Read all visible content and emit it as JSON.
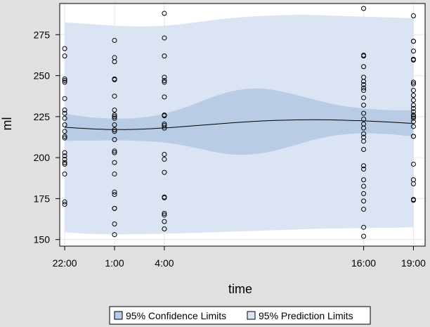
{
  "chart_data": {
    "type": "scatter",
    "xlabel": "time",
    "ylabel": "ml",
    "x_ticks": [
      {
        "value": 0,
        "label": "22:00"
      },
      {
        "value": 3,
        "label": "1:00"
      },
      {
        "value": 6,
        "label": "4:00"
      },
      {
        "value": 18,
        "label": "16:00"
      },
      {
        "value": 21,
        "label": "19:00"
      }
    ],
    "xlim": [
      -0.3,
      21.7
    ],
    "y_ticks": [
      150,
      175,
      200,
      225,
      250,
      275
    ],
    "ylim": [
      146,
      294
    ],
    "grid": true,
    "colors": {
      "background": "#e0e0e0",
      "plot_background": "#ffffff",
      "confidence_band": "#b8cce6",
      "prediction_band": "#dbe4f2",
      "fit_line": "#000000",
      "grid": "#e6e6e6"
    },
    "fit": {
      "x": [
        0,
        1.5,
        3,
        4.5,
        6,
        7.5,
        9,
        10.5,
        12,
        13.5,
        15,
        16.5,
        18,
        19.5,
        21
      ],
      "y": [
        218.5,
        217.6,
        217.1,
        217.3,
        218.1,
        219.2,
        220.4,
        221.5,
        222.4,
        222.9,
        223.1,
        222.9,
        222.4,
        221.7,
        220.8
      ]
    },
    "confidence_limits": {
      "name": "95% Confidence Limits",
      "upper": [
        226.8,
        224.6,
        223.8,
        224.3,
        226.8,
        231.5,
        237.3,
        241.3,
        242.0,
        239.3,
        235.5,
        232.0,
        230.0,
        229.0,
        228.8
      ],
      "lower": [
        210.2,
        210.4,
        210.5,
        210.2,
        209.2,
        206.8,
        203.5,
        201.7,
        202.9,
        206.5,
        210.9,
        213.8,
        214.8,
        214.3,
        212.8
      ]
    },
    "prediction_limits": {
      "name": "95% Prediction Limits",
      "upper": [
        282.5,
        281.5,
        280.5,
        280.0,
        280.5,
        282.0,
        284.0,
        285.5,
        286.5,
        287.0,
        287.0,
        286.5,
        286.0,
        285.5,
        285.0
      ],
      "lower": [
        154.5,
        153.5,
        153.2,
        153.3,
        153.6,
        154.0,
        154.5,
        155.0,
        155.5,
        156.0,
        156.5,
        156.8,
        157.0,
        157.2,
        157.5
      ]
    },
    "observations": [
      {
        "x": 0,
        "y": [
          266.5,
          262,
          248,
          247,
          246,
          236,
          229,
          227,
          224,
          220,
          216,
          213,
          212,
          203,
          201,
          199,
          197,
          196,
          190,
          173,
          171.5
        ]
      },
      {
        "x": 3,
        "y": [
          271.5,
          261,
          258.5,
          248,
          247.5,
          237.5,
          229,
          226,
          225,
          224,
          220,
          217,
          216,
          211,
          204,
          203,
          197,
          190,
          179,
          177.5,
          169,
          169,
          159.5,
          153
        ]
      },
      {
        "x": 6,
        "y": [
          288,
          273,
          262,
          249,
          247,
          246,
          237,
          226,
          225.5,
          220.5,
          219.5,
          218,
          202,
          199,
          191,
          176,
          175.5,
          166,
          165,
          161,
          156.5
        ]
      },
      {
        "x": 18,
        "y": [
          291,
          262.5,
          262,
          255.5,
          249,
          246.5,
          244.5,
          242.5,
          241,
          236.5,
          232,
          227,
          223.5,
          220.5,
          218,
          214.5,
          212.5,
          210,
          205,
          195,
          193,
          186.5,
          182.5,
          178,
          173.5,
          168.5,
          157.5,
          152
        ]
      },
      {
        "x": 21,
        "y": [
          286.5,
          271,
          271,
          265,
          260,
          259.5,
          246,
          245,
          241,
          238,
          235,
          232,
          230,
          228,
          226,
          225,
          224,
          222,
          219,
          213,
          213,
          196,
          186.5,
          184,
          174.5,
          174
        ]
      }
    ],
    "legend_position": "bottom",
    "legend": [
      {
        "label": "95% Confidence Limits",
        "swatch": "confidence"
      },
      {
        "label": "95% Prediction Limits",
        "swatch": "prediction"
      }
    ]
  }
}
